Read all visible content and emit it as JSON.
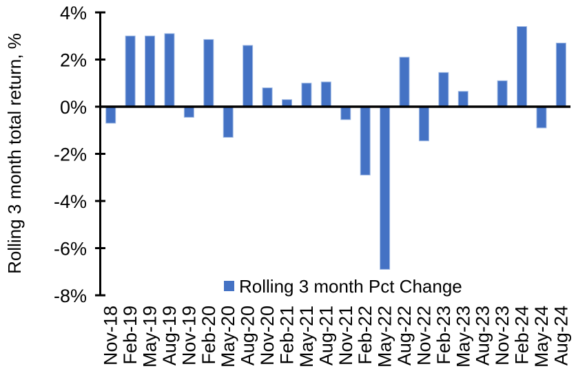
{
  "chart_data": {
    "type": "bar",
    "title": "",
    "xlabel": "",
    "ylabel": "Rolling 3 month total return, %",
    "legend_label": "Rolling 3 month Pct Change",
    "legend_position": "bottom-center-inside-plot",
    "ylim": [
      -8,
      4
    ],
    "yticks": [
      4,
      2,
      0,
      -2,
      -4,
      -6,
      -8
    ],
    "ytick_suffix": "%",
    "grid": false,
    "bar_color": "#4472C4",
    "bar_edge_color": "#9fb9e4",
    "axis_color": "#000000",
    "categories": [
      "Nov-18",
      "Feb-19",
      "May-19",
      "Aug-19",
      "Nov-19",
      "Feb-20",
      "May-20",
      "Aug-20",
      "Nov-20",
      "Feb-21",
      "May-21",
      "Aug-21",
      "Nov-21",
      "Feb-22",
      "May-22",
      "Aug-22",
      "Nov-22",
      "Feb-23",
      "May-23",
      "Aug-23",
      "Nov-23",
      "Feb-24",
      "May-24",
      "Aug-24"
    ],
    "values": [
      -0.7,
      3.0,
      3.0,
      3.1,
      -0.45,
      2.85,
      -1.3,
      2.6,
      0.8,
      0.3,
      1.0,
      1.05,
      -0.55,
      -2.9,
      -6.9,
      2.1,
      -1.45,
      1.45,
      0.65,
      0.0,
      1.1,
      3.4,
      -0.9,
      2.7
    ]
  }
}
